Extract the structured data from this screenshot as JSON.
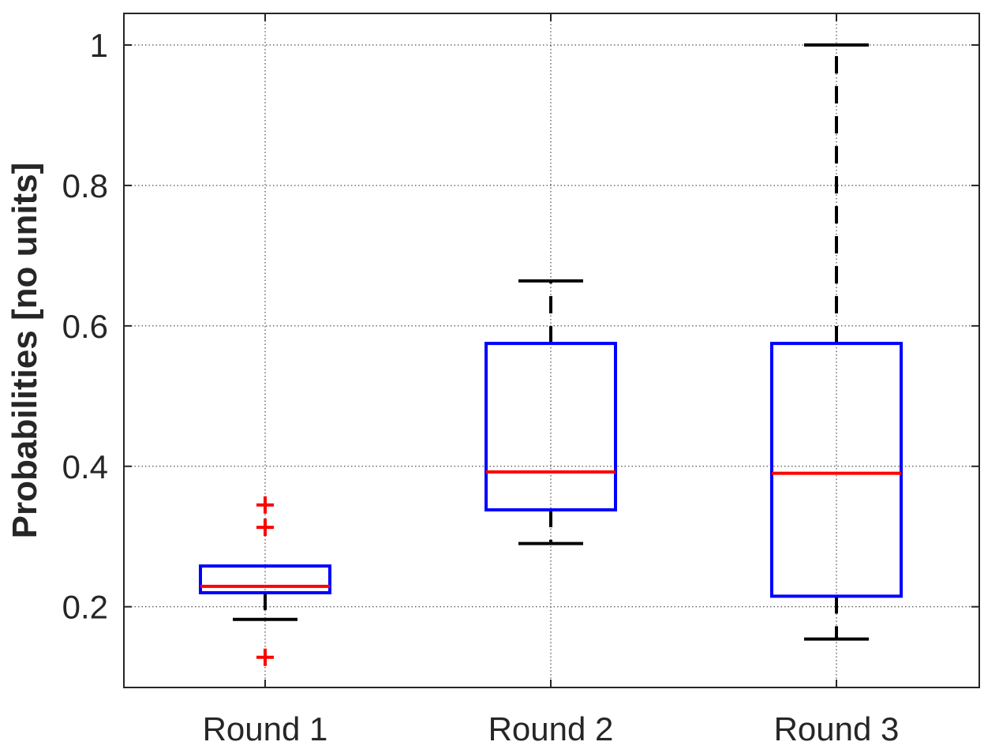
{
  "chart_data": {
    "type": "box",
    "ylabel": "Probabilities [no units]",
    "ylim": [
      0.085,
      1.045
    ],
    "grid": true,
    "yticks": [
      0.2,
      0.4,
      0.6,
      0.8,
      1
    ],
    "ytick_labels": [
      "0.2",
      "0.4",
      "0.6",
      "0.8",
      "1"
    ],
    "categories": [
      "Round 1",
      "Round 2",
      "Round 3"
    ],
    "boxes": [
      {
        "label": "Round 1",
        "whisker_low": 0.182,
        "q1": 0.22,
        "median": 0.229,
        "q3": 0.258,
        "whisker_high": 0.258,
        "outliers": [
          0.345,
          0.313,
          0.128
        ]
      },
      {
        "label": "Round 2",
        "whisker_low": 0.29,
        "q1": 0.338,
        "median": 0.392,
        "q3": 0.575,
        "whisker_high": 0.664,
        "outliers": []
      },
      {
        "label": "Round 3",
        "whisker_low": 0.154,
        "q1": 0.215,
        "median": 0.39,
        "q3": 0.575,
        "whisker_high": 1.0,
        "outliers": []
      }
    ],
    "colors": {
      "box": "#0000ff",
      "median": "#ff0000",
      "whisker": "#000000",
      "outlier": "#ff0000",
      "axis": "#262626",
      "grid": "#262626"
    }
  }
}
